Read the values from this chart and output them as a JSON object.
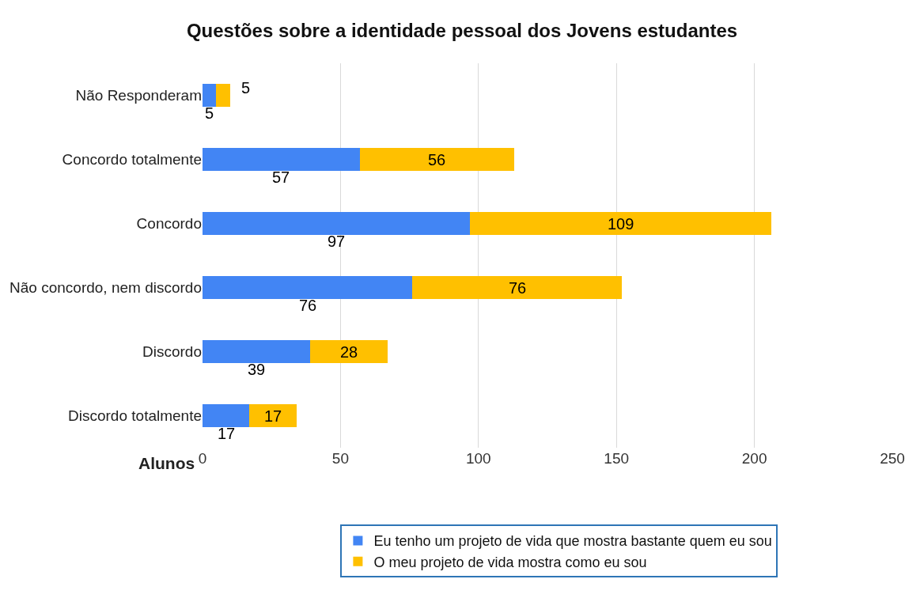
{
  "chart_data": {
    "type": "bar",
    "orientation": "horizontal",
    "stacked": true,
    "title": "Questões sobre a identidade pessoal dos Jovens estudantes",
    "xlabel": "Alunos",
    "categories": [
      "Não Responderam",
      "Concordo totalmente",
      "Concordo",
      "Não concordo, nem discordo",
      "Discordo",
      "Discordo totalmente"
    ],
    "series": [
      {
        "name": "Eu tenho um projeto de vida que mostra bastante quem eu sou",
        "color": "#4285f4",
        "values": [
          5,
          57,
          97,
          76,
          39,
          17
        ]
      },
      {
        "name": "O meu projeto de vida mostra como eu sou",
        "color": "#ffc000",
        "values": [
          5,
          56,
          109,
          76,
          28,
          17
        ]
      }
    ],
    "xlim": [
      0,
      250
    ],
    "xticks": [
      0,
      50,
      100,
      150,
      200,
      250
    ],
    "grid": "x",
    "legend": "bottom",
    "data_labels": true
  }
}
